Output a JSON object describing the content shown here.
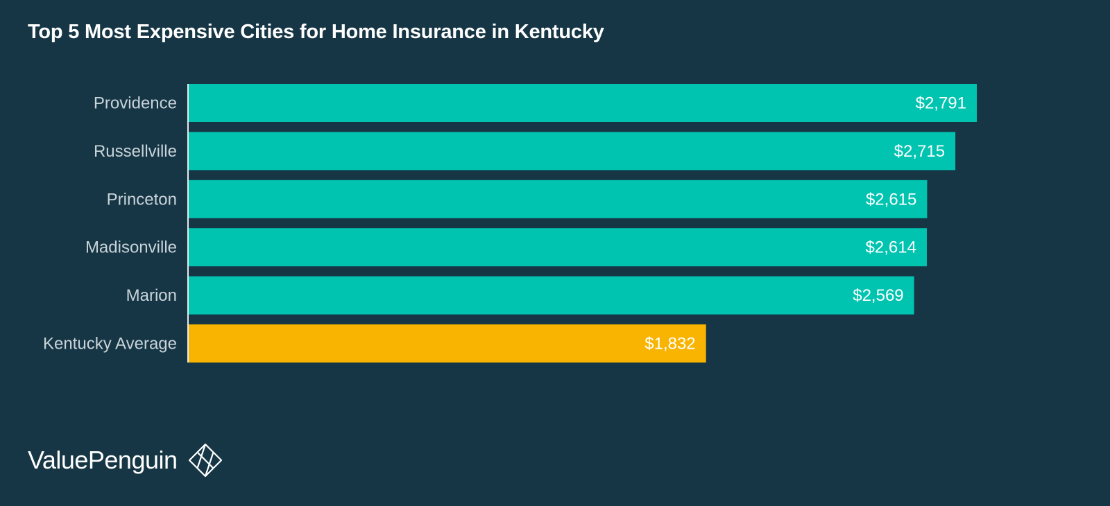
{
  "page": {
    "background": "#163645"
  },
  "chart_data": {
    "type": "bar",
    "orientation": "horizontal",
    "title": "Top 5 Most Expensive Cities for Home Insurance in Kentucky",
    "categories": [
      "Providence",
      "Russellville",
      "Princeton",
      "Madisonville",
      "Marion",
      "Kentucky Average"
    ],
    "values": [
      2791,
      2715,
      2615,
      2614,
      2569,
      1832
    ],
    "value_labels": [
      "$2,791",
      "$2,715",
      "$2,615",
      "$2,614",
      "$2,569",
      "$1,832"
    ],
    "colors": [
      "#00c4b0",
      "#00c4b0",
      "#00c4b0",
      "#00c4b0",
      "#00c4b0",
      "#f8b400"
    ],
    "xlim": [
      0,
      2791
    ],
    "xlabel": "",
    "ylabel": "",
    "grid": false,
    "legend": "none"
  },
  "brand": {
    "name": "ValuePenguin",
    "icon": "valuepenguin-logo-icon"
  }
}
